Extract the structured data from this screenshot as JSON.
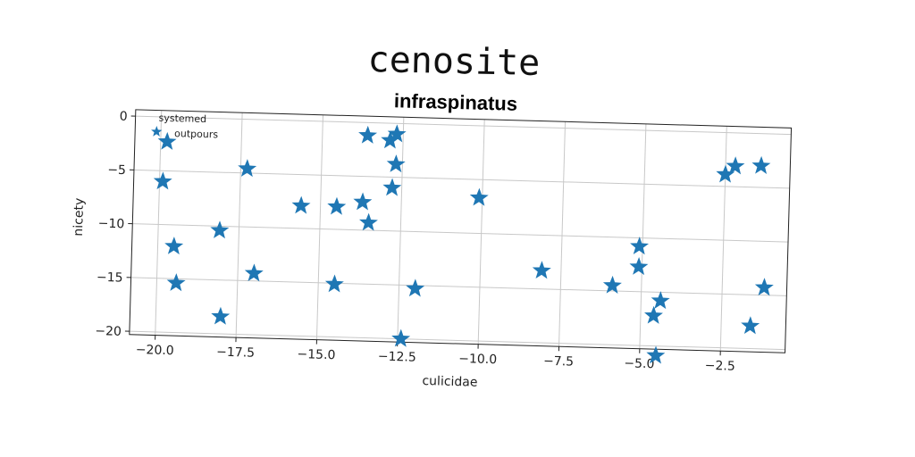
{
  "chart_data": {
    "type": "scatter",
    "title": "cenosite",
    "subtitle": "infraspinatus",
    "xlabel": "culicidae",
    "ylabel": "nicety",
    "xlim": [
      -20.8,
      -0.5
    ],
    "ylim": [
      -20.3,
      0.6
    ],
    "xticks": [
      -20.0,
      -17.5,
      -15.0,
      -12.5,
      -10.0,
      -7.5,
      -5.0,
      -2.5
    ],
    "xtick_labels": [
      "−20.0",
      "−17.5",
      "−15.0",
      "−12.5",
      "−10.0",
      "−7.5",
      "−5.0",
      "−2.5"
    ],
    "yticks": [
      0,
      -5,
      -10,
      -15,
      -20
    ],
    "ytick_labels": [
      "0",
      "−5",
      "−10",
      "−15",
      "−20"
    ],
    "grid": true,
    "legend": {
      "title": "systemed",
      "placement": "top-left",
      "entries": [
        "outpours"
      ]
    },
    "series": [
      {
        "name": "outpours",
        "marker": "star",
        "color": "#1f77b4",
        "points": [
          [
            -19.8,
            -2.3
          ],
          [
            -19.9,
            -6.0
          ],
          [
            -19.5,
            -12.0
          ],
          [
            -19.4,
            -15.4
          ],
          [
            -18.0,
            -18.4
          ],
          [
            -18.1,
            -10.4
          ],
          [
            -17.3,
            -4.6
          ],
          [
            -17.0,
            -14.3
          ],
          [
            -15.6,
            -7.9
          ],
          [
            -14.5,
            -7.9
          ],
          [
            -14.5,
            -15.1
          ],
          [
            -13.7,
            -7.4
          ],
          [
            -13.6,
            -1.2
          ],
          [
            -13.5,
            -9.3
          ],
          [
            -12.9,
            -1.6
          ],
          [
            -12.7,
            -1.0
          ],
          [
            -12.8,
            -6.0
          ],
          [
            -12.7,
            -3.8
          ],
          [
            -12.4,
            -20.0
          ],
          [
            -12.0,
            -15.3
          ],
          [
            -10.1,
            -6.7
          ],
          [
            -8.1,
            -13.3
          ],
          [
            -5.9,
            -14.5
          ],
          [
            -5.1,
            -10.8
          ],
          [
            -5.1,
            -12.7
          ],
          [
            -4.6,
            -17.2
          ],
          [
            -4.5,
            -20.9
          ],
          [
            -4.4,
            -15.8
          ],
          [
            -2.5,
            -3.9
          ],
          [
            -2.2,
            -3.1
          ],
          [
            -1.4,
            -3.0
          ],
          [
            -1.6,
            -17.9
          ],
          [
            -1.2,
            -14.3
          ]
        ]
      }
    ]
  }
}
